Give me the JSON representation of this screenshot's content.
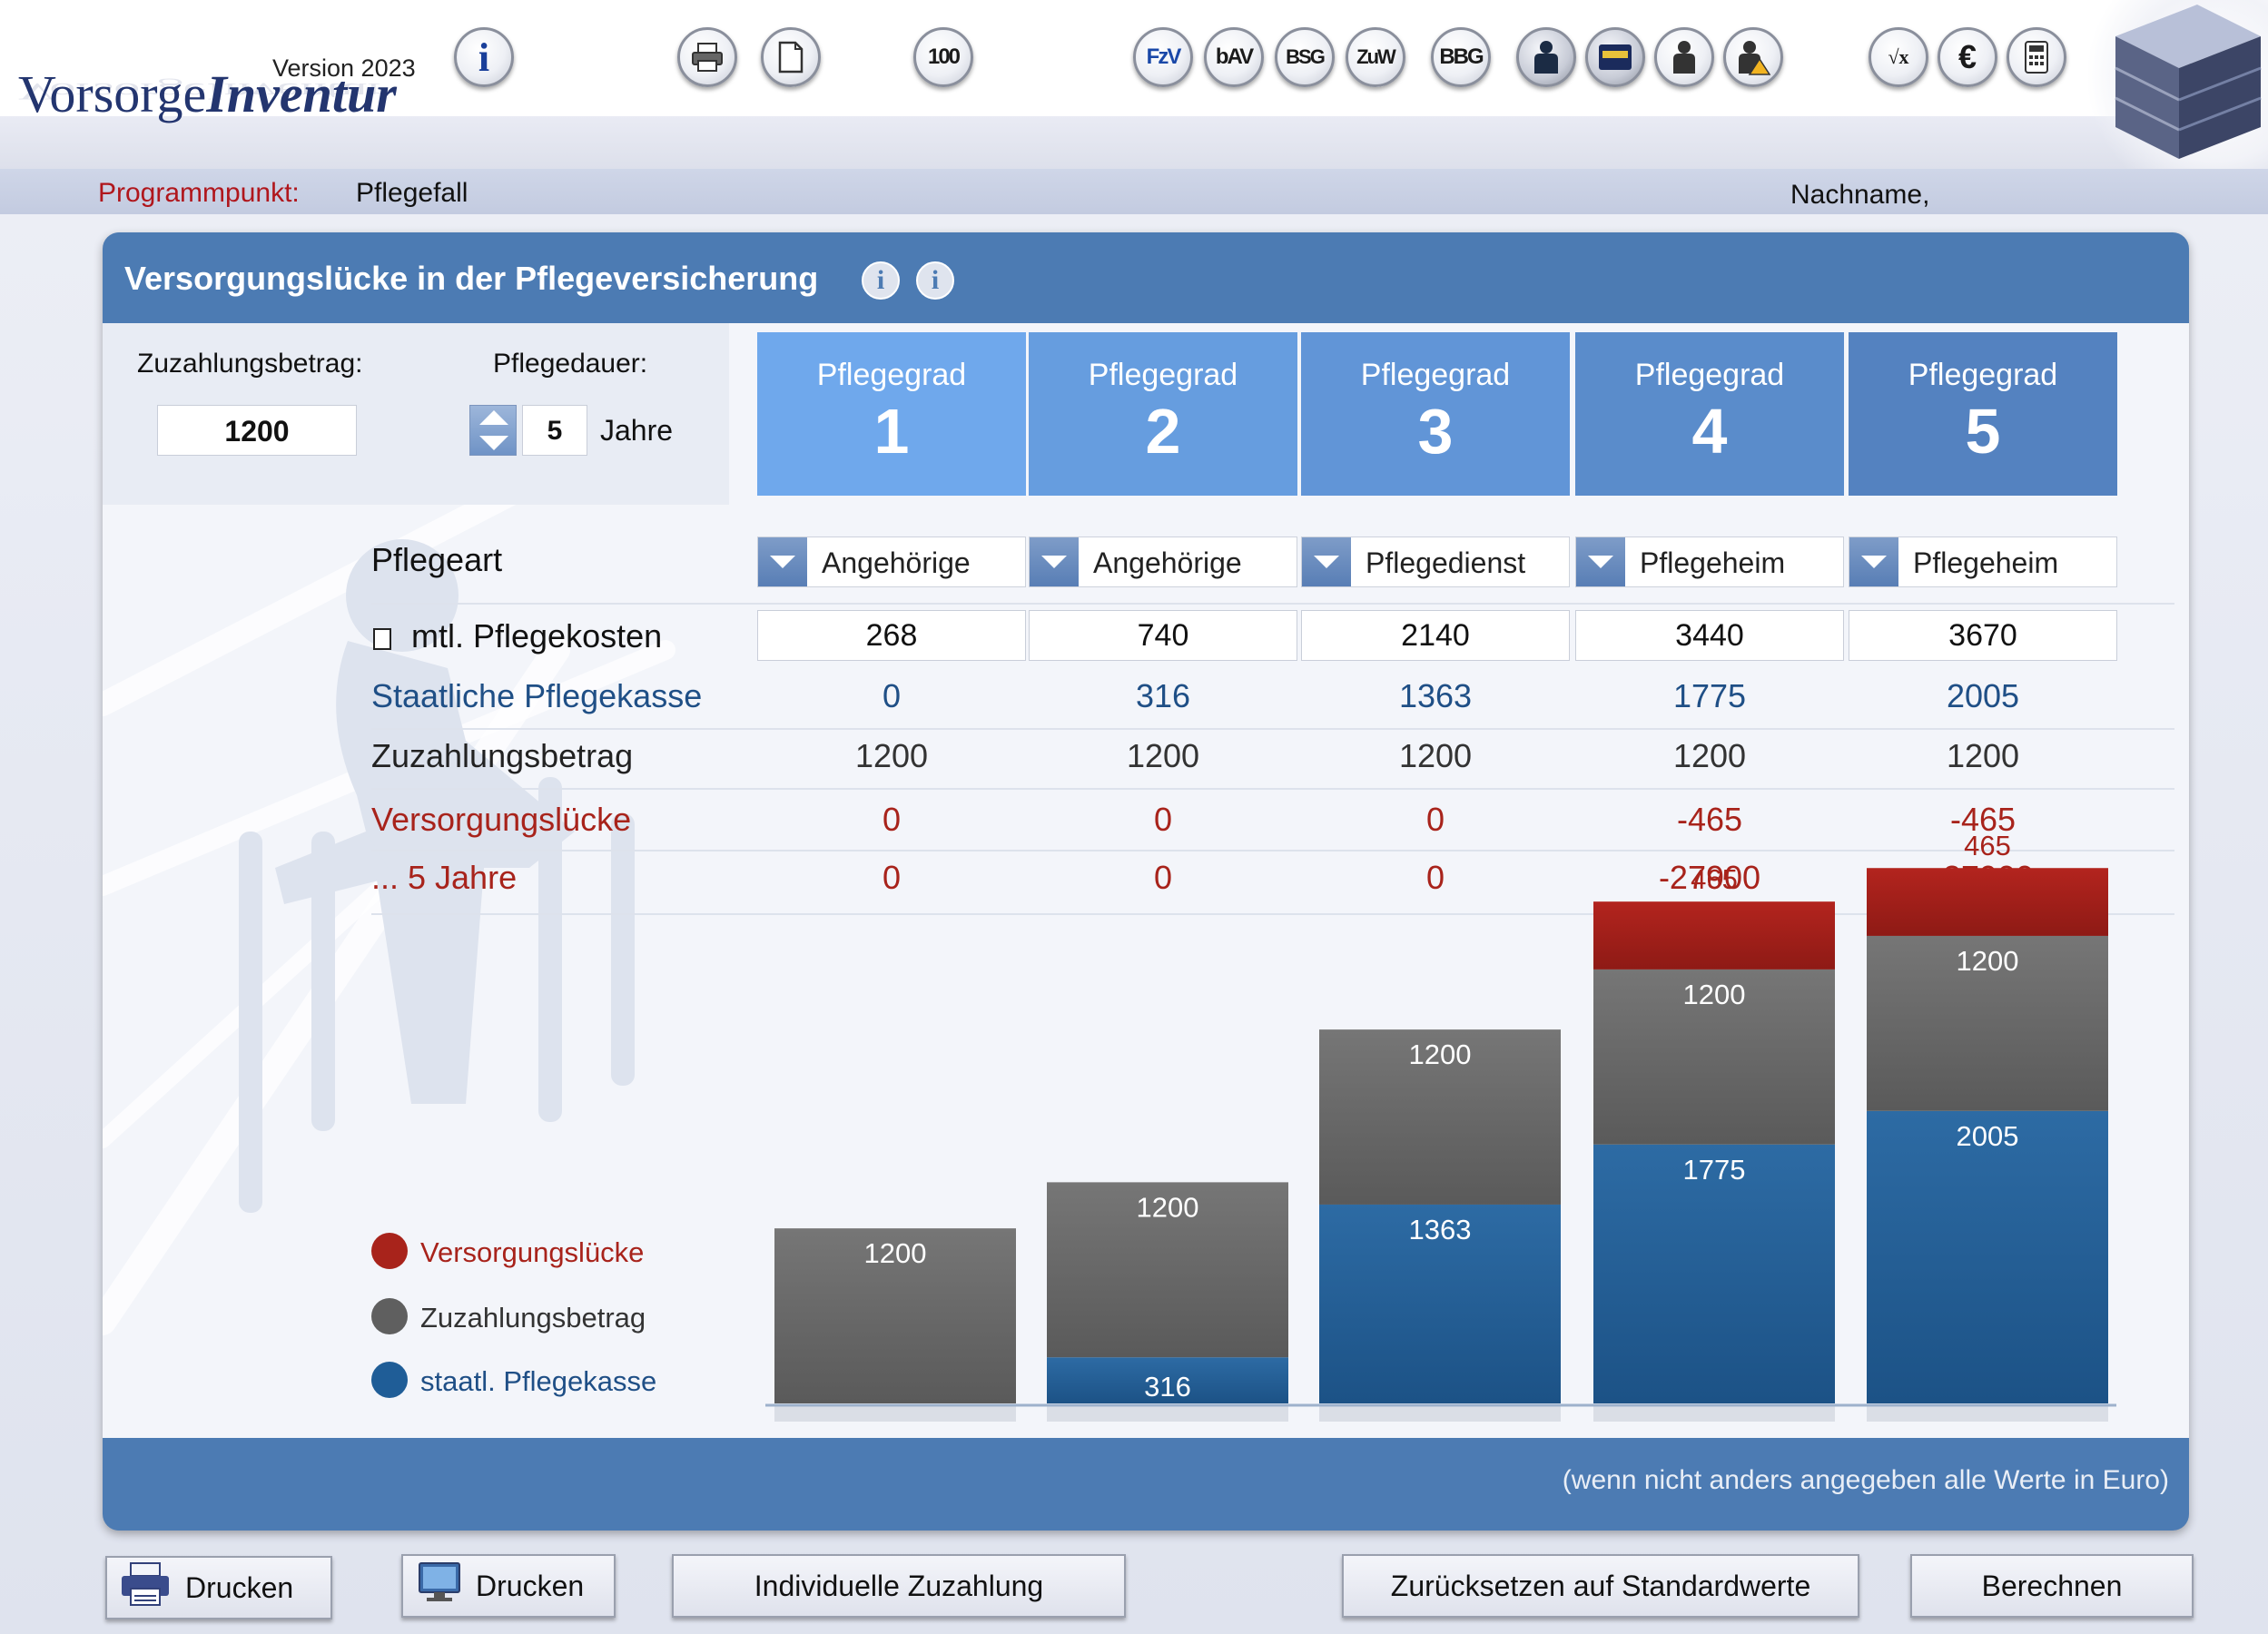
{
  "header": {
    "logo_regular": "Vorsorge",
    "logo_bold": "Inventur",
    "version": "Version 2023",
    "toolbar": [
      {
        "name": "info-icon",
        "label": "i"
      },
      {
        "name": "print-icon",
        "label": ""
      },
      {
        "name": "document-icon",
        "label": ""
      },
      {
        "name": "hundred-icon",
        "label": "100"
      },
      {
        "name": "fzv-icon",
        "label": "FzV"
      },
      {
        "name": "bav-icon",
        "label": "bAV"
      },
      {
        "name": "bsg-icon",
        "label": "BSG"
      },
      {
        "name": "zuw-icon",
        "label": "ZuW"
      },
      {
        "name": "bbg-icon",
        "label": "BBG"
      },
      {
        "name": "person-icon",
        "label": ""
      },
      {
        "name": "card-icon",
        "label": ""
      },
      {
        "name": "user-icon",
        "label": ""
      },
      {
        "name": "user-warning-icon",
        "label": ""
      },
      {
        "name": "formula-icon",
        "label": "√x"
      },
      {
        "name": "euro-icon",
        "label": "€"
      },
      {
        "name": "calculator-icon",
        "label": ""
      }
    ],
    "cube_icon": "database-cube-icon"
  },
  "program": {
    "label": "Programmpunkt:",
    "value": "Pflegefall",
    "nachname": "Nachname,"
  },
  "panel": {
    "title": "Versorgungslücke in der Pflegeversicherung",
    "info1": "i",
    "info2": "i",
    "zuzahlung_label": "Zuzahlungsbetrag:",
    "zuzahlung_value": "1200",
    "pflegedauer_label": "Pflegedauer:",
    "pflegedauer_value": "5",
    "jahre_label": "Jahre",
    "footer_note": "(wenn nicht anders angegeben alle Werte in Euro)"
  },
  "grades": [
    {
      "label": "Pflegegrad",
      "number": "1",
      "color": "#6fa8ec"
    },
    {
      "label": "Pflegegrad",
      "number": "2",
      "color": "#669ddf"
    },
    {
      "label": "Pflegegrad",
      "number": "3",
      "color": "#6195d7"
    },
    {
      "label": "Pflegegrad",
      "number": "4",
      "color": "#5a8ccb"
    },
    {
      "label": "Pflegegrad",
      "number": "5",
      "color": "#5482c0"
    }
  ],
  "rows": {
    "pflegeart_label": "Pflegeart",
    "pflegeart": [
      "Angehörige",
      "Angehörige",
      "Pflegedienst",
      "Pflegeheim",
      "Pflegeheim"
    ],
    "kosten_label": "mtl. Pflegekosten",
    "kosten": [
      "268",
      "740",
      "2140",
      "3440",
      "3670"
    ],
    "kasse_label": "Staatliche Pflegekasse",
    "kasse": [
      "0",
      "316",
      "1363",
      "1775",
      "2005"
    ],
    "zuzahlung_label": "Zuzahlungsbetrag",
    "zuzahlung": [
      "1200",
      "1200",
      "1200",
      "1200",
      "1200"
    ],
    "luecke_label": "Versorgungslücke",
    "luecke": [
      "0",
      "0",
      "0",
      "-465",
      "-465"
    ],
    "jahre_label": "... 5 Jahre",
    "jahre": [
      "0",
      "0",
      "0",
      "-27900",
      "-27900"
    ]
  },
  "chart_data": {
    "type": "bar",
    "stacked": true,
    "categories": [
      "Pflegegrad 1",
      "Pflegegrad 2",
      "Pflegegrad 3",
      "Pflegegrad 4",
      "Pflegegrad 5"
    ],
    "series": [
      {
        "name": "staatl. Pflegekasse",
        "values": [
          0,
          316,
          1363,
          1775,
          2005
        ],
        "color": "#245f96"
      },
      {
        "name": "Zuzahlungsbetrag",
        "values": [
          1200,
          1200,
          1200,
          1200,
          1200
        ],
        "color": "#6a6a6a"
      },
      {
        "name": "Versorgungslücke",
        "values": [
          0,
          0,
          0,
          465,
          465
        ],
        "color": "#a3201c"
      }
    ],
    "legend": [
      "Versorgungslücke",
      "Zuzahlungsbetrag",
      "staatl. Pflegekasse"
    ],
    "legend_colors": [
      "#a8231b",
      "#5f5f5f",
      "#1f5d97"
    ],
    "legend_text_colors": [
      "#a8231b",
      "#333333",
      "#1f4f86"
    ],
    "ymax": 3670
  },
  "buttons": {
    "drucken1": "Drucken",
    "drucken2": "Drucken",
    "individuelle": "Individuelle Zuzahlung",
    "zuruecksetzen": "Zurücksetzen auf Standardwerte",
    "berechnen": "Berechnen"
  },
  "colors": {
    "accent": "#4c7bb3",
    "red": "#a8231b",
    "blue_text": "#1f4f86"
  }
}
